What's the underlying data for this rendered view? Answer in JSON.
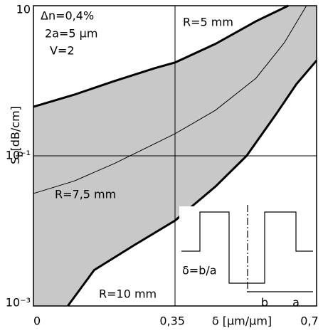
{
  "chart_data": {
    "type": "line",
    "x_label": "δ [μm/μm]",
    "y_label_parts": [
      "S",
      "b",
      "[dB/cm]"
    ],
    "xlim": [
      0,
      0.7
    ],
    "xticks": [
      {
        "value": 0,
        "label": "0"
      },
      {
        "value": 0.35,
        "label": "0,35"
      },
      {
        "value": 0.7,
        "label": "0,7"
      }
    ],
    "ylim": [
      0.001,
      10
    ],
    "yticks": [
      {
        "value": 0.001,
        "label": "10⁻³"
      },
      {
        "value": 0.1,
        "label": "10⁻¹"
      },
      10
    ],
    "log_y": true,
    "grid": true,
    "fill_between": true,
    "fill_color": "#c8c8c8",
    "series": [
      {
        "name": "R=5 mm",
        "color": "#000000",
        "x": [
          0,
          0.1,
          0.2,
          0.3,
          0.35,
          0.45,
          0.55,
          0.63
        ],
        "values": [
          0.45,
          0.65,
          0.99,
          1.47,
          1.75,
          3.1,
          6.2,
          10
        ]
      },
      {
        "name": "R=7,5 mm",
        "color": "#000000",
        "x": [
          0,
          0.1,
          0.2,
          0.35,
          0.45,
          0.55,
          0.62,
          0.675
        ],
        "values": [
          0.0315,
          0.046,
          0.079,
          0.197,
          0.405,
          1.08,
          3.2,
          10
        ]
      },
      {
        "name": "R=10 mm",
        "color": "#000000",
        "x": [
          0.085,
          0.15,
          0.25,
          0.35,
          0.45,
          0.527,
          0.6,
          0.65,
          0.7
        ],
        "values": [
          0.001,
          0.003,
          0.0065,
          0.0137,
          0.039,
          0.1,
          0.36,
          0.9,
          1.86
        ]
      }
    ],
    "annotations": [
      "Δn=0,4%",
      "2a=5  μm",
      "V=2"
    ],
    "inset": {
      "formula": "δ=b/a",
      "b": "b",
      "a": "a"
    }
  }
}
